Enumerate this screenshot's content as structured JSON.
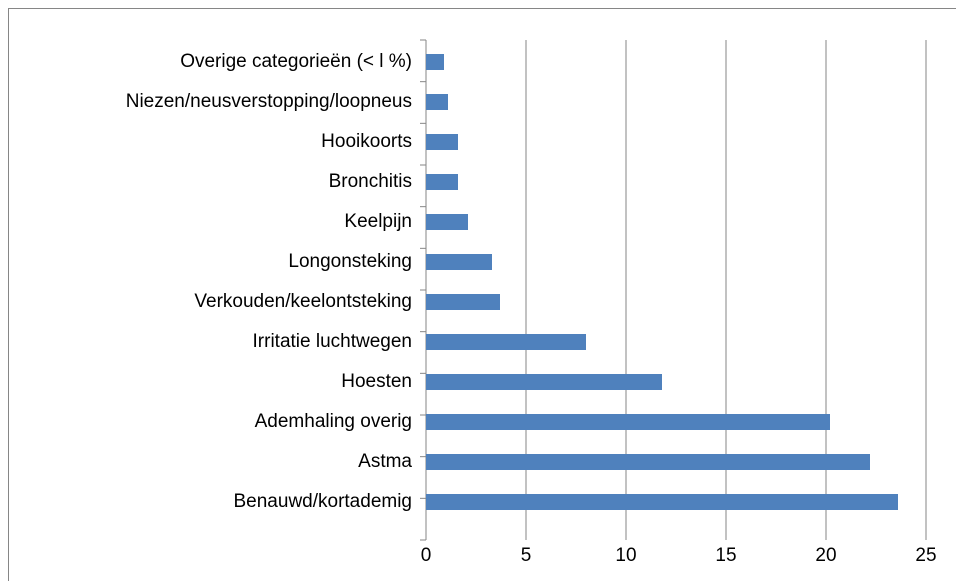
{
  "chart_data": {
    "type": "bar",
    "orientation": "horizontal",
    "categories": [
      "Overige categorieën (< l %)",
      "Niezen/neusverstopping/loopneus",
      "Hooikoorts",
      "Bronchitis",
      "Keelpijn",
      "Longonsteking",
      "Verkouden/keelontsteking",
      "Irritatie luchtwegen",
      "Hoesten",
      "Ademhaling overig",
      "Astma",
      "Benauwd/kortademig"
    ],
    "values": [
      0.9,
      1.1,
      1.6,
      1.6,
      2.1,
      3.3,
      3.7,
      8.0,
      11.8,
      20.2,
      22.2,
      23.6
    ],
    "color": "#4f81bd",
    "xlim": [
      0,
      25
    ],
    "xticks": [
      0,
      5,
      10,
      15,
      20,
      25
    ],
    "grid": true
  }
}
